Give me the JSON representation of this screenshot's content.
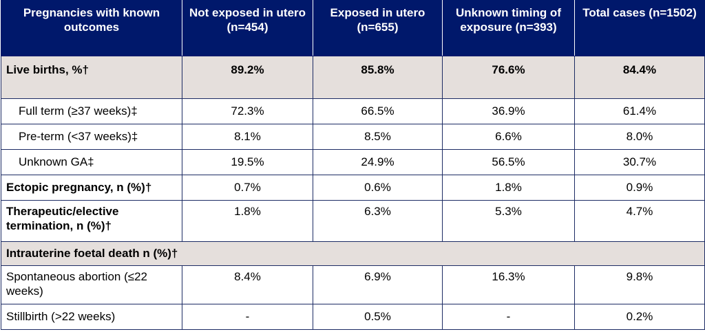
{
  "columns": [
    "Pregnancies with known outcomes",
    "Not exposed in utero (n=454)",
    "Exposed in utero (n=655)",
    "Unknown timing of exposure (n=393)",
    "Total cases (n=1502)"
  ],
  "rows": {
    "live_births": {
      "label": "Live births, %†",
      "values": [
        "89.2%",
        "85.8%",
        "76.6%",
        "84.4%"
      ]
    },
    "full_term": {
      "label": "Full term (≥37 weeks)‡",
      "values": [
        "72.3%",
        "66.5%",
        "36.9%",
        "61.4%"
      ]
    },
    "pre_term": {
      "label": "Pre-term (<37 weeks)‡",
      "values": [
        "8.1%",
        "8.5%",
        "6.6%",
        "8.0%"
      ]
    },
    "unknown_ga": {
      "label": "Unknown GA‡",
      "values": [
        "19.5%",
        "24.9%",
        "56.5%",
        "30.7%"
      ]
    },
    "ectopic": {
      "label": "Ectopic pregnancy, n (%)†",
      "values": [
        "0.7%",
        "0.6%",
        "1.8%",
        "0.9%"
      ]
    },
    "termination": {
      "label": "Therapeutic/elective termination, n (%)†",
      "values": [
        "1.8%",
        "6.3%",
        "5.3%",
        "4.7%"
      ]
    },
    "intrauterine": {
      "label": "Intrauterine foetal death n (%)†"
    },
    "spontaneous": {
      "label": "Spontaneous abortion (≤22 weeks)",
      "values": [
        "8.4%",
        "6.9%",
        "16.3%",
        "9.8%"
      ]
    },
    "stillbirth": {
      "label": "Stillbirth (>22 weeks)",
      "values": [
        "-",
        "0.5%",
        "-",
        "0.2%"
      ]
    }
  }
}
